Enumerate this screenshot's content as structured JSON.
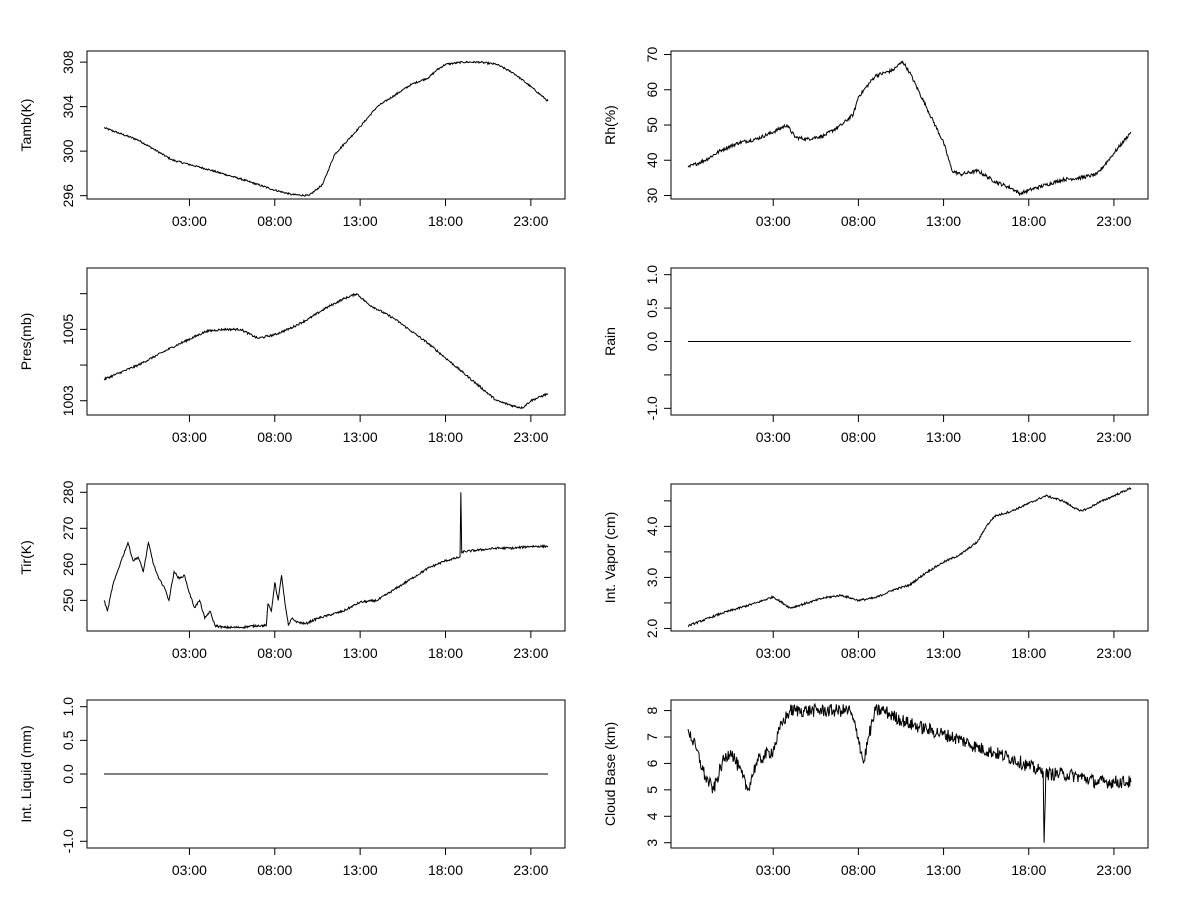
{
  "chart_data": [
    {
      "type": "line",
      "title": "",
      "xlabel": "",
      "ylabel": "Tamb(K)",
      "x_ticks": [
        "03:00",
        "08:00",
        "13:00",
        "18:00",
        "23:00"
      ],
      "x_tick_hours": [
        3,
        8,
        13,
        18,
        23
      ],
      "xlim": [
        -3,
        25
      ],
      "y_ticks": [
        {
          "v": 296,
          "t": "296"
        },
        {
          "v": 300,
          "t": "300"
        },
        {
          "v": 304,
          "t": "304"
        },
        {
          "v": 308,
          "t": "308"
        }
      ],
      "ylim": [
        295.7,
        309.0
      ],
      "noise": 0.08,
      "series": [
        {
          "name": "Tamb",
          "x": [
            -2,
            0,
            2,
            4,
            6,
            8,
            9,
            10,
            10.8,
            11.5,
            13,
            14,
            15,
            16,
            17,
            17.5,
            18,
            19,
            20,
            21,
            22,
            23,
            24
          ],
          "values": [
            302.1,
            301.0,
            299.2,
            298.4,
            297.5,
            296.5,
            296.1,
            296.0,
            297.0,
            299.7,
            302.2,
            304.0,
            305.0,
            306.0,
            306.6,
            307.3,
            307.8,
            308.0,
            308.0,
            307.8,
            307.0,
            305.8,
            304.5
          ]
        }
      ]
    },
    {
      "type": "line",
      "title": "",
      "xlabel": "",
      "ylabel": "Rh(%)",
      "x_ticks": [
        "03:00",
        "08:00",
        "13:00",
        "18:00",
        "23:00"
      ],
      "x_tick_hours": [
        3,
        8,
        13,
        18,
        23
      ],
      "xlim": [
        -3,
        25
      ],
      "y_ticks": [
        {
          "v": 30,
          "t": "30"
        },
        {
          "v": 40,
          "t": "40"
        },
        {
          "v": 50,
          "t": "50"
        },
        {
          "v": 60,
          "t": "60"
        },
        {
          "v": 70,
          "t": "70"
        }
      ],
      "ylim": [
        29,
        71
      ],
      "noise": 0.5,
      "series": [
        {
          "name": "Rh",
          "x": [
            -2,
            -1,
            0,
            1,
            2,
            3,
            3.8,
            4.3,
            5,
            6,
            7,
            7.7,
            8,
            9,
            10,
            10.6,
            11,
            12,
            13,
            13.5,
            14,
            15,
            16,
            17,
            17.5,
            18,
            19,
            20,
            21,
            22,
            23,
            24
          ],
          "values": [
            38,
            40,
            43,
            45,
            46,
            48,
            50,
            46.5,
            46,
            47,
            50,
            53,
            58,
            64,
            65.5,
            68,
            65,
            55,
            45,
            37,
            36,
            37,
            34,
            32,
            30.5,
            31.5,
            33,
            34.5,
            35,
            36,
            42,
            48
          ]
        }
      ]
    },
    {
      "type": "line",
      "title": "",
      "xlabel": "",
      "ylabel": "Pres(mb)",
      "x_ticks": [
        "03:00",
        "08:00",
        "13:00",
        "18:00",
        "23:00"
      ],
      "x_tick_hours": [
        3,
        8,
        13,
        18,
        23
      ],
      "xlim": [
        -3,
        25
      ],
      "y_ticks": [
        {
          "v": 1003,
          "t": "1003"
        },
        {
          "v": 1004,
          "t": ""
        },
        {
          "v": 1005,
          "t": "1005"
        },
        {
          "v": 1006,
          "t": ""
        }
      ],
      "ylim": [
        1002.6,
        1006.72
      ],
      "noise": 0.03,
      "series": [
        {
          "name": "Pres",
          "x": [
            -2,
            0,
            2,
            4,
            5,
            6,
            7,
            8,
            9,
            10,
            11,
            12,
            12.8,
            13.5,
            15,
            16,
            17,
            18,
            19,
            20,
            21,
            22,
            22.5,
            23,
            24
          ],
          "values": [
            1003.6,
            1004.0,
            1004.5,
            1004.95,
            1005.0,
            1005.0,
            1004.75,
            1004.85,
            1005.05,
            1005.3,
            1005.6,
            1005.85,
            1006.0,
            1005.7,
            1005.3,
            1004.95,
            1004.6,
            1004.2,
            1003.8,
            1003.4,
            1003.0,
            1002.85,
            1002.8,
            1003.0,
            1003.2
          ]
        }
      ]
    },
    {
      "type": "line",
      "title": "",
      "xlabel": "",
      "ylabel": "Rain",
      "x_ticks": [
        "03:00",
        "08:00",
        "13:00",
        "18:00",
        "23:00"
      ],
      "x_tick_hours": [
        3,
        8,
        13,
        18,
        23
      ],
      "xlim": [
        -3,
        25
      ],
      "y_ticks": [
        {
          "v": -1.0,
          "t": "-1.0"
        },
        {
          "v": -0.5,
          "t": ""
        },
        {
          "v": 0.0,
          "t": "0.0"
        },
        {
          "v": 0.5,
          "t": "0.5"
        },
        {
          "v": 1.0,
          "t": "1.0"
        }
      ],
      "ylim": [
        -1.1,
        1.1
      ],
      "noise": 0,
      "series": [
        {
          "name": "Rain",
          "x": [
            -2,
            24
          ],
          "values": [
            0,
            0
          ]
        }
      ]
    },
    {
      "type": "line",
      "title": "",
      "xlabel": "",
      "ylabel": "Tir(K)",
      "x_ticks": [
        "03:00",
        "08:00",
        "13:00",
        "18:00",
        "23:00"
      ],
      "x_tick_hours": [
        3,
        8,
        13,
        18,
        23
      ],
      "xlim": [
        -3,
        25
      ],
      "y_ticks": [
        {
          "v": 250,
          "t": "250"
        },
        {
          "v": 260,
          "t": "260"
        },
        {
          "v": 270,
          "t": "270"
        },
        {
          "v": 280,
          "t": "280"
        }
      ],
      "ylim": [
        241.5,
        282.3
      ],
      "noise": 0.3,
      "series": [
        {
          "name": "Tir",
          "x": [
            -2,
            -1.8,
            -1.5,
            -1.0,
            -0.6,
            -0.3,
            0,
            0.3,
            0.6,
            0.9,
            1.2,
            1.5,
            1.8,
            2.1,
            2.4,
            2.7,
            3.0,
            3.3,
            3.6,
            3.9,
            4.2,
            4.5,
            5,
            6,
            7,
            7.5,
            7.6,
            7.8,
            8.0,
            8.2,
            8.4,
            8.6,
            8.8,
            9.0,
            9.3,
            9.8,
            10.5,
            12,
            13,
            14,
            15,
            16,
            17,
            18,
            18.85,
            18.9,
            18.95,
            19.0,
            20,
            21,
            22,
            23,
            24
          ],
          "values": [
            250,
            247,
            254,
            261,
            266,
            261,
            262,
            258,
            266,
            260,
            256,
            254,
            250,
            258,
            256,
            257,
            252,
            248,
            250,
            245,
            247,
            243,
            242.5,
            242.5,
            243,
            243,
            249,
            247,
            255,
            250,
            257,
            249,
            243,
            245,
            244,
            243.5,
            245,
            247,
            249.5,
            250,
            253,
            256,
            259,
            261,
            262,
            280,
            263,
            263.5,
            264,
            264.5,
            264.5,
            265,
            265
          ]
        }
      ]
    },
    {
      "type": "line",
      "title": "",
      "xlabel": "",
      "ylabel": "Int. Vapor (cm)",
      "x_ticks": [
        "03:00",
        "08:00",
        "13:00",
        "18:00",
        "23:00"
      ],
      "x_tick_hours": [
        3,
        8,
        13,
        18,
        23
      ],
      "xlim": [
        -3,
        25
      ],
      "y_ticks": [
        {
          "v": 2.0,
          "t": "2.0"
        },
        {
          "v": 2.5,
          "t": ""
        },
        {
          "v": 3.0,
          "t": "3.0"
        },
        {
          "v": 3.5,
          "t": ""
        },
        {
          "v": 4.0,
          "t": "4.0"
        },
        {
          "v": 4.5,
          "t": ""
        }
      ],
      "ylim": [
        1.95,
        4.83
      ],
      "noise": 0.02,
      "series": [
        {
          "name": "Int. Vapor",
          "x": [
            -2,
            0,
            2,
            3,
            4,
            5,
            6,
            7,
            8,
            9,
            10,
            11,
            12,
            13,
            14,
            15,
            15.5,
            16,
            17,
            18,
            19,
            20,
            21,
            21.5,
            22,
            23,
            24
          ],
          "values": [
            2.05,
            2.3,
            2.5,
            2.62,
            2.4,
            2.5,
            2.6,
            2.65,
            2.55,
            2.6,
            2.75,
            2.85,
            3.1,
            3.3,
            3.45,
            3.7,
            4.0,
            4.2,
            4.3,
            4.45,
            4.6,
            4.5,
            4.3,
            4.35,
            4.45,
            4.6,
            4.75
          ]
        }
      ]
    },
    {
      "type": "line",
      "title": "",
      "xlabel": "",
      "ylabel": "Int. Liquid (mm)",
      "x_ticks": [
        "03:00",
        "08:00",
        "13:00",
        "18:00",
        "23:00"
      ],
      "x_tick_hours": [
        3,
        8,
        13,
        18,
        23
      ],
      "xlim": [
        -3,
        25
      ],
      "y_ticks": [
        {
          "v": -1.0,
          "t": "-1.0"
        },
        {
          "v": -0.5,
          "t": ""
        },
        {
          "v": 0.0,
          "t": "0.0"
        },
        {
          "v": 0.5,
          "t": "0.5"
        },
        {
          "v": 1.0,
          "t": "1.0"
        }
      ],
      "ylim": [
        -1.1,
        1.1
      ],
      "noise": 0,
      "series": [
        {
          "name": "Int. Liquid",
          "x": [
            -2,
            24
          ],
          "values": [
            0,
            0
          ]
        }
      ]
    },
    {
      "type": "line",
      "title": "",
      "xlabel": "",
      "ylabel": "Cloud Base (km)",
      "x_ticks": [
        "03:00",
        "08:00",
        "13:00",
        "18:00",
        "23:00"
      ],
      "x_tick_hours": [
        3,
        8,
        13,
        18,
        23
      ],
      "xlim": [
        -3,
        25
      ],
      "y_ticks": [
        {
          "v": 3,
          "t": "3"
        },
        {
          "v": 4,
          "t": "4"
        },
        {
          "v": 5,
          "t": "5"
        },
        {
          "v": 6,
          "t": "6"
        },
        {
          "v": 7,
          "t": "7"
        },
        {
          "v": 8,
          "t": "8"
        }
      ],
      "ylim": [
        2.8,
        8.4
      ],
      "noise": 0.25,
      "series": [
        {
          "name": "Cloud Base",
          "x": [
            -2,
            -1.5,
            -1.0,
            -0.5,
            0,
            0.5,
            1.0,
            1.5,
            2.0,
            2.5,
            3.0,
            3.5,
            4.0,
            4.5,
            5,
            6,
            7,
            7.5,
            8.0,
            8.3,
            8.6,
            9.0,
            9.5,
            10,
            11,
            12,
            13,
            14,
            15,
            16,
            17,
            18,
            18.7,
            18.85,
            18.9,
            19.0,
            20,
            21,
            22,
            23,
            24
          ],
          "values": [
            7.3,
            6.5,
            5.5,
            5.0,
            6.0,
            6.5,
            5.8,
            5.0,
            6.0,
            6.3,
            6.5,
            7.5,
            8.0,
            8.0,
            8.0,
            8.0,
            8.0,
            8.0,
            7.0,
            6.0,
            7.0,
            8.0,
            8.0,
            7.8,
            7.5,
            7.3,
            7.1,
            6.9,
            6.6,
            6.4,
            6.2,
            5.9,
            5.7,
            5.7,
            3.0,
            5.6,
            5.6,
            5.5,
            5.3,
            5.3,
            5.3
          ]
        }
      ]
    }
  ]
}
